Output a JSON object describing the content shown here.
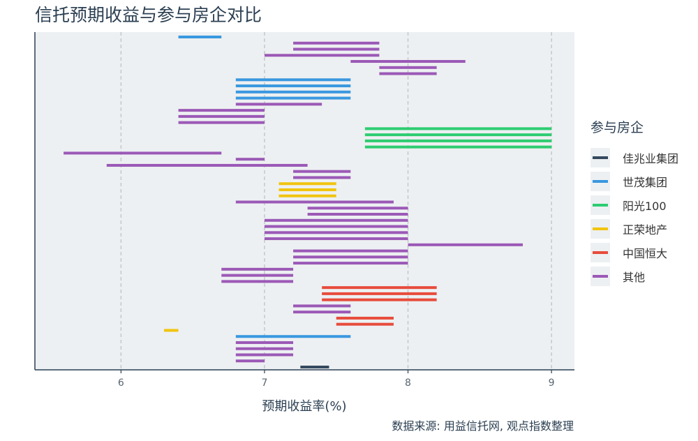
{
  "title": "信托预期收益与参与房企对比",
  "caption": "数据来源: 用益信托网, 观点指数整理",
  "chart_data": {
    "type": "bar",
    "title": "信托预期收益与参与房企对比",
    "xlabel": "预期收益率(%)",
    "ylabel": "",
    "xlim": [
      5.4,
      9.16
    ],
    "xticks": [
      6,
      7,
      8,
      9
    ],
    "grid": "vertical-dashed",
    "legend_title": "参与房企",
    "legend_position": "right",
    "series": [
      {
        "name": "佳兆业集团",
        "color": "#34495e"
      },
      {
        "name": "世茂集团",
        "color": "#3a98e0"
      },
      {
        "name": "阳光100",
        "color": "#2ecc71"
      },
      {
        "name": "正荣地产",
        "color": "#f1c40f"
      },
      {
        "name": "中国恒大",
        "color": "#e74c3c"
      },
      {
        "name": "其他",
        "color": "#9b59b6"
      }
    ],
    "products": [
      {
        "series": "世茂集团",
        "low": 6.4,
        "high": 6.7
      },
      {
        "series": "其他",
        "low": 7.2,
        "high": 7.8
      },
      {
        "series": "其他",
        "low": 7.2,
        "high": 7.8
      },
      {
        "series": "其他",
        "low": 7.0,
        "high": 7.8
      },
      {
        "series": "其他",
        "low": 7.6,
        "high": 8.4
      },
      {
        "series": "其他",
        "low": 7.8,
        "high": 8.2
      },
      {
        "series": "其他",
        "low": 7.8,
        "high": 8.2
      },
      {
        "series": "世茂集团",
        "low": 6.8,
        "high": 7.6
      },
      {
        "series": "世茂集团",
        "low": 6.8,
        "high": 7.6
      },
      {
        "series": "世茂集团",
        "low": 6.8,
        "high": 7.6
      },
      {
        "series": "世茂集团",
        "low": 6.8,
        "high": 7.6
      },
      {
        "series": "其他",
        "low": 6.8,
        "high": 7.4
      },
      {
        "series": "其他",
        "low": 6.4,
        "high": 7.0
      },
      {
        "series": "其他",
        "low": 6.4,
        "high": 7.0
      },
      {
        "series": "其他",
        "low": 6.4,
        "high": 7.0
      },
      {
        "series": "阳光100",
        "low": 7.7,
        "high": 9.0
      },
      {
        "series": "阳光100",
        "low": 7.7,
        "high": 9.0
      },
      {
        "series": "阳光100",
        "low": 7.7,
        "high": 9.0
      },
      {
        "series": "阳光100",
        "low": 7.7,
        "high": 9.0
      },
      {
        "series": "其他",
        "low": 5.6,
        "high": 6.7
      },
      {
        "series": "其他",
        "low": 6.8,
        "high": 7.0
      },
      {
        "series": "其他",
        "low": 5.9,
        "high": 7.3
      },
      {
        "series": "其他",
        "low": 7.2,
        "high": 7.6
      },
      {
        "series": "其他",
        "low": 7.2,
        "high": 7.6
      },
      {
        "series": "正荣地产",
        "low": 7.1,
        "high": 7.5
      },
      {
        "series": "正荣地产",
        "low": 7.1,
        "high": 7.5
      },
      {
        "series": "正荣地产",
        "low": 7.1,
        "high": 7.5
      },
      {
        "series": "其他",
        "low": 6.8,
        "high": 7.9
      },
      {
        "series": "其他",
        "low": 7.3,
        "high": 8.0
      },
      {
        "series": "其他",
        "low": 7.3,
        "high": 8.0
      },
      {
        "series": "其他",
        "low": 7.0,
        "high": 8.0
      },
      {
        "series": "其他",
        "low": 7.0,
        "high": 8.0
      },
      {
        "series": "其他",
        "low": 7.0,
        "high": 8.0
      },
      {
        "series": "其他",
        "low": 7.0,
        "high": 8.0
      },
      {
        "series": "其他",
        "low": 8.0,
        "high": 8.8
      },
      {
        "series": "其他",
        "low": 7.2,
        "high": 8.0
      },
      {
        "series": "其他",
        "low": 7.2,
        "high": 8.0
      },
      {
        "series": "其他",
        "low": 7.2,
        "high": 8.0
      },
      {
        "series": "其他",
        "low": 6.7,
        "high": 7.2
      },
      {
        "series": "其他",
        "low": 6.7,
        "high": 7.2
      },
      {
        "series": "其他",
        "low": 6.7,
        "high": 7.2
      },
      {
        "series": "中国恒大",
        "low": 7.4,
        "high": 8.2
      },
      {
        "series": "中国恒大",
        "low": 7.4,
        "high": 8.2
      },
      {
        "series": "中国恒大",
        "low": 7.4,
        "high": 8.2
      },
      {
        "series": "其他",
        "low": 7.2,
        "high": 7.6
      },
      {
        "series": "其他",
        "low": 7.2,
        "high": 7.6
      },
      {
        "series": "中国恒大",
        "low": 7.5,
        "high": 7.9
      },
      {
        "series": "中国恒大",
        "low": 7.5,
        "high": 7.9
      },
      {
        "series": "正荣地产",
        "low": 6.3,
        "high": 6.4
      },
      {
        "series": "世茂集团",
        "low": 6.8,
        "high": 7.6
      },
      {
        "series": "其他",
        "low": 6.8,
        "high": 7.2
      },
      {
        "series": "其他",
        "low": 6.8,
        "high": 7.2
      },
      {
        "series": "其他",
        "low": 6.8,
        "high": 7.2
      },
      {
        "series": "其他",
        "low": 6.8,
        "high": 7.0
      },
      {
        "series": "佳兆业集团",
        "low": 7.25,
        "high": 7.45
      }
    ]
  }
}
